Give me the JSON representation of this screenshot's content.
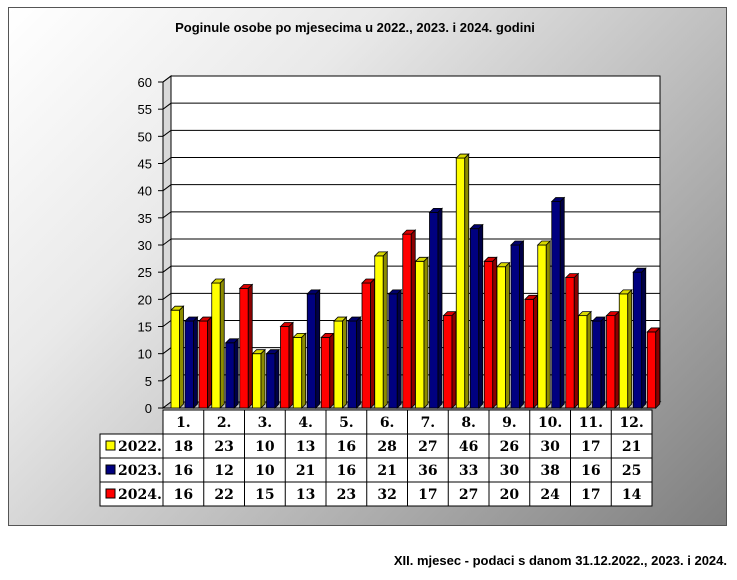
{
  "chart_data": {
    "type": "bar",
    "title": "Poginule osobe po mjesecima u 2022., 2023. i 2024. godini",
    "categories": [
      "1.",
      "2.",
      "3.",
      "4.",
      "5.",
      "6.",
      "7.",
      "8.",
      "9.",
      "10.",
      "11.",
      "12."
    ],
    "ylim": [
      0,
      60
    ],
    "yticks": [
      0,
      5,
      10,
      15,
      20,
      25,
      30,
      35,
      40,
      45,
      50,
      55,
      60
    ],
    "grid": true,
    "legend": "data-table-left",
    "series": [
      {
        "name": "2022.",
        "color": "#ffff00",
        "values": [
          18,
          23,
          10,
          13,
          16,
          28,
          27,
          46,
          26,
          30,
          17,
          21
        ]
      },
      {
        "name": "2023.",
        "color": "#000080",
        "values": [
          16,
          12,
          10,
          21,
          16,
          21,
          36,
          33,
          30,
          38,
          16,
          25
        ]
      },
      {
        "name": "2024.",
        "color": "#ff0000",
        "values": [
          16,
          22,
          15,
          13,
          23,
          32,
          17,
          27,
          20,
          24,
          17,
          14
        ]
      }
    ]
  },
  "footer": "XII. mjesec - podaci s danom 31.12.2022., 2023. i 2024."
}
